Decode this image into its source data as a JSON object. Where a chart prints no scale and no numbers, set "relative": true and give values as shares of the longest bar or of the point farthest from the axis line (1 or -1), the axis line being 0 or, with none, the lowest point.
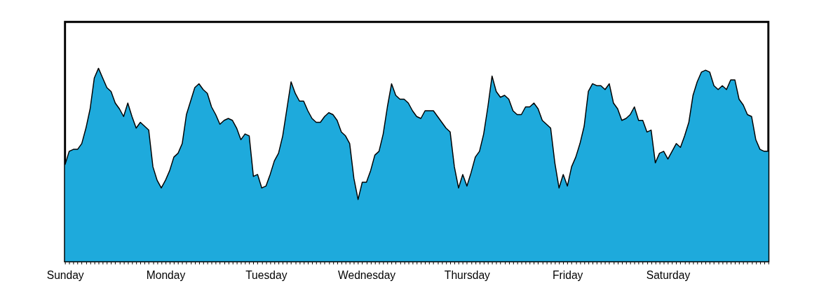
{
  "chart_data": {
    "type": "area",
    "relative": true,
    "color": "#1eaadc",
    "categories": [
      "Sunday",
      null,
      null,
      null,
      null,
      null,
      null,
      null,
      null,
      null,
      null,
      null,
      null,
      null,
      null,
      null,
      null,
      null,
      null,
      null,
      null,
      null,
      null,
      null,
      "Monday",
      null,
      null,
      null,
      null,
      null,
      null,
      null,
      null,
      null,
      null,
      null,
      null,
      null,
      null,
      null,
      null,
      null,
      null,
      null,
      null,
      null,
      null,
      null,
      "Tuesday",
      null,
      null,
      null,
      null,
      null,
      null,
      null,
      null,
      null,
      null,
      null,
      null,
      null,
      null,
      null,
      null,
      null,
      null,
      null,
      null,
      null,
      null,
      null,
      "Wednesday",
      null,
      null,
      null,
      null,
      null,
      null,
      null,
      null,
      null,
      null,
      null,
      null,
      null,
      null,
      null,
      null,
      null,
      null,
      null,
      null,
      null,
      null,
      null,
      "Thursday",
      null,
      null,
      null,
      null,
      null,
      null,
      null,
      null,
      null,
      null,
      null,
      null,
      null,
      null,
      null,
      null,
      null,
      null,
      null,
      null,
      null,
      null,
      null,
      "Friday",
      null,
      null,
      null,
      null,
      null,
      null,
      null,
      null,
      null,
      null,
      null,
      null,
      null,
      null,
      null,
      null,
      null,
      null,
      null,
      null,
      null,
      null,
      null,
      "Saturday",
      null,
      null,
      null,
      null,
      null,
      null,
      null,
      null,
      null,
      null,
      null,
      null,
      null,
      null,
      null,
      null,
      null,
      null,
      null,
      null,
      null,
      null,
      null,
      null
    ],
    "values": [
      0.5,
      0.57,
      0.58,
      0.58,
      0.61,
      0.69,
      0.79,
      0.95,
      1.0,
      0.95,
      0.9,
      0.88,
      0.82,
      0.79,
      0.75,
      0.82,
      0.75,
      0.69,
      0.72,
      0.7,
      0.68,
      0.49,
      0.42,
      0.38,
      0.42,
      0.47,
      0.54,
      0.56,
      0.61,
      0.76,
      0.83,
      0.9,
      0.92,
      0.89,
      0.87,
      0.8,
      0.76,
      0.71,
      0.73,
      0.74,
      0.73,
      0.69,
      0.63,
      0.66,
      0.65,
      0.44,
      0.45,
      0.38,
      0.39,
      0.45,
      0.52,
      0.56,
      0.65,
      0.79,
      0.93,
      0.87,
      0.83,
      0.83,
      0.78,
      0.74,
      0.72,
      0.72,
      0.75,
      0.77,
      0.76,
      0.73,
      0.67,
      0.65,
      0.61,
      0.43,
      0.32,
      0.41,
      0.41,
      0.47,
      0.55,
      0.57,
      0.66,
      0.8,
      0.92,
      0.86,
      0.84,
      0.84,
      0.82,
      0.78,
      0.75,
      0.74,
      0.78,
      0.78,
      0.78,
      0.75,
      0.72,
      0.69,
      0.67,
      0.49,
      0.38,
      0.45,
      0.39,
      0.46,
      0.54,
      0.57,
      0.66,
      0.8,
      0.96,
      0.88,
      0.85,
      0.86,
      0.84,
      0.78,
      0.76,
      0.76,
      0.8,
      0.8,
      0.82,
      0.79,
      0.73,
      0.71,
      0.69,
      0.51,
      0.38,
      0.45,
      0.39,
      0.49,
      0.54,
      0.61,
      0.7,
      0.88,
      0.92,
      0.91,
      0.91,
      0.89,
      0.92,
      0.82,
      0.79,
      0.73,
      0.74,
      0.76,
      0.8,
      0.73,
      0.73,
      0.67,
      0.68,
      0.51,
      0.56,
      0.57,
      0.53,
      0.57,
      0.61,
      0.59,
      0.65,
      0.72,
      0.86,
      0.93,
      0.98,
      0.99,
      0.98,
      0.91,
      0.89,
      0.91,
      0.89,
      0.94,
      0.94,
      0.84,
      0.81,
      0.76,
      0.75,
      0.63,
      0.58,
      0.57,
      0.57
    ]
  }
}
